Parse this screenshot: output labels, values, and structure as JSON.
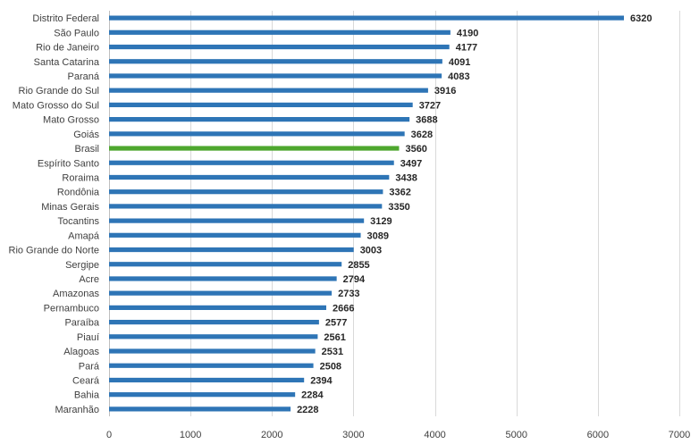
{
  "chart_data": {
    "type": "bar",
    "orientation": "horizontal",
    "categories": [
      "Distrito Federal",
      "São Paulo",
      "Rio de Janeiro",
      "Santa Catarina",
      "Paraná",
      "Rio Grande do Sul",
      "Mato Grosso do Sul",
      "Mato Grosso",
      "Goiás",
      "Brasil",
      "Espírito Santo",
      "Roraima",
      "Rondônia",
      "Minas Gerais",
      "Tocantins",
      "Amapá",
      "Rio Grande do Norte",
      "Sergipe",
      "Acre",
      "Amazonas",
      "Pernambuco",
      "Paraíba",
      "Piauí",
      "Alagoas",
      "Pará",
      "Ceará",
      "Bahia",
      "Maranhão"
    ],
    "values": [
      6320,
      4190,
      4177,
      4091,
      4083,
      3916,
      3727,
      3688,
      3628,
      3560,
      3497,
      3438,
      3362,
      3350,
      3129,
      3089,
      3003,
      2855,
      2794,
      2733,
      2666,
      2577,
      2561,
      2531,
      2508,
      2394,
      2284,
      2228
    ],
    "xlim": [
      0,
      7000
    ],
    "xticks": [
      0,
      1000,
      2000,
      3000,
      4000,
      5000,
      6000,
      7000
    ],
    "title": "",
    "xlabel": "",
    "ylabel": "",
    "grid": "vertical",
    "legend": "none",
    "colors": {
      "default": "#2e75b6",
      "highlight": "#4ea72e"
    },
    "highlight_category": "Brasil"
  }
}
